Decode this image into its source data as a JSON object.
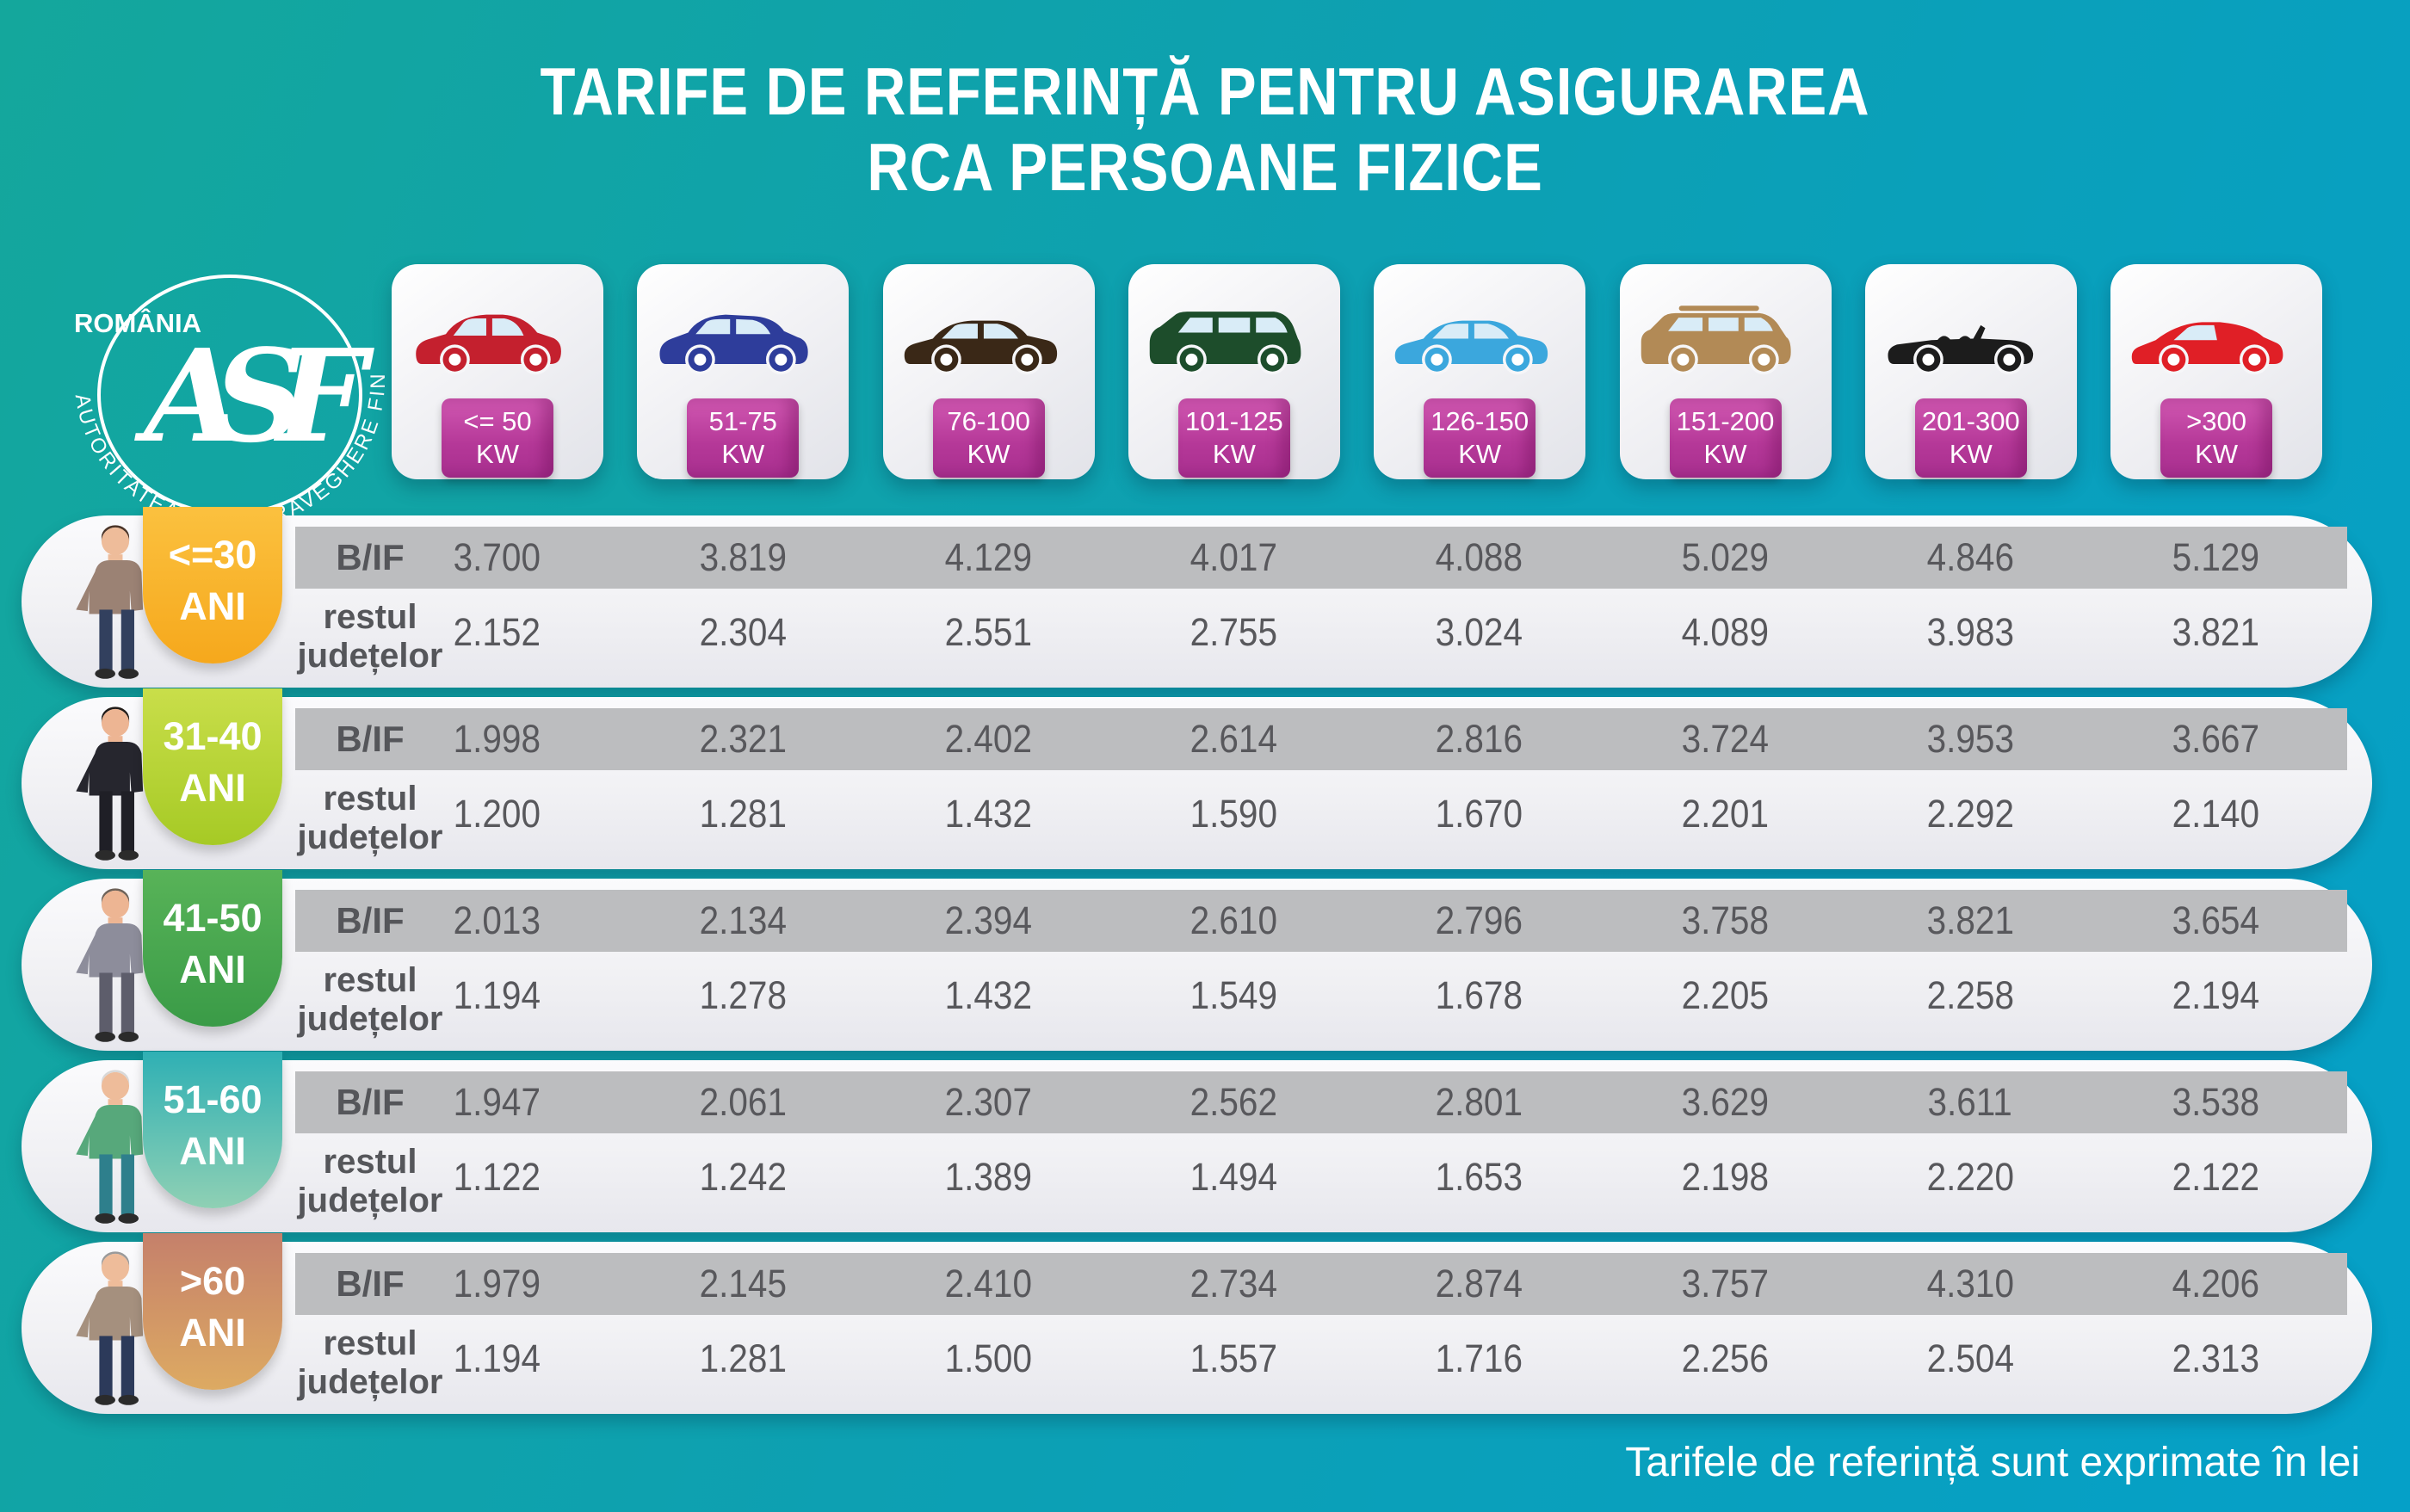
{
  "title": {
    "line1": "TARIFE DE REFERINȚĂ PENTRU ASIGURAREA",
    "line2": "RCA PERSOANE FIZICE"
  },
  "logo": {
    "country": "ROMÂNIA",
    "monogram": "ASF",
    "ring_text": "AUTORITATEA DE SUPRAVEGHERE FINANCIARĂ"
  },
  "footer_note": "Tarifele de referință sunt exprimate în lei",
  "labels": {
    "bif": "B/IF",
    "rest_line1": "restul",
    "rest_line2": "județelor",
    "age_unit": "ANI"
  },
  "colors": {
    "background_left": "#14a79c",
    "background_right": "#05a0c8",
    "kw_badge": "#b53898",
    "bif_band": "#bcbdbf",
    "value_text": "#58585c",
    "card": "#f1f1f4"
  },
  "power_categories": [
    {
      "range": "<= 50",
      "unit": "KW",
      "icon": "car-hatchback-icon",
      "color": "#c4202e"
    },
    {
      "range": "51-75",
      "unit": "KW",
      "icon": "car-crossover-icon",
      "color": "#2e3d9b"
    },
    {
      "range": "76-100",
      "unit": "KW",
      "icon": "car-sedan-icon",
      "color": "#3a2817"
    },
    {
      "range": "101-125",
      "unit": "KW",
      "icon": "car-minivan-icon",
      "color": "#1d4d2b"
    },
    {
      "range": "126-150",
      "unit": "KW",
      "icon": "car-sedan-blue-icon",
      "color": "#3ba7dd"
    },
    {
      "range": "151-200",
      "unit": "KW",
      "icon": "car-suv-icon",
      "color": "#b28a56"
    },
    {
      "range": "201-300",
      "unit": "KW",
      "icon": "car-convertible-icon",
      "color": "#1c1c1c"
    },
    {
      "range": ">300",
      "unit": "KW",
      "icon": "car-sports-icon",
      "color": "#e01f26"
    }
  ],
  "age_groups": [
    {
      "age": "<=30",
      "badge_top": "#fbc13f",
      "badge_bottom": "#f6a81c",
      "person": {
        "hair": "#4a3428",
        "skin": "#eebc9a",
        "top": "#9b8274",
        "shirt": "#f2efe9",
        "pants": "#32405e"
      },
      "bif": [
        "3.700",
        "3.819",
        "4.129",
        "4.017",
        "4.088",
        "5.029",
        "4.846",
        "5.129"
      ],
      "rest": [
        "2.152",
        "2.304",
        "2.551",
        "2.755",
        "3.024",
        "4.089",
        "3.983",
        "3.821"
      ]
    },
    {
      "age": "31-40",
      "badge_top": "#c9de4a",
      "badge_bottom": "#a6ca25",
      "person": {
        "hair": "#201b18",
        "skin": "#edb593",
        "top": "#26262e",
        "shirt": "#ffffff",
        "pants": "#1f1f26"
      },
      "bif": [
        "1.998",
        "2.321",
        "2.402",
        "2.614",
        "2.816",
        "3.724",
        "3.953",
        "3.667"
      ],
      "rest": [
        "1.200",
        "1.281",
        "1.432",
        "1.590",
        "1.670",
        "2.201",
        "2.292",
        "2.140"
      ]
    },
    {
      "age": "41-50",
      "badge_top": "#58b358",
      "badge_bottom": "#3a9b47",
      "person": {
        "hair": "#6e6258",
        "skin": "#edb593",
        "top": "#8d8d9b",
        "shirt": "#e8e8ee",
        "pants": "#5d5d6b"
      },
      "bif": [
        "2.013",
        "2.134",
        "2.394",
        "2.610",
        "2.796",
        "3.758",
        "3.821",
        "3.654"
      ],
      "rest": [
        "1.194",
        "1.278",
        "1.432",
        "1.549",
        "1.678",
        "2.205",
        "2.258",
        "2.194"
      ]
    },
    {
      "age": "51-60",
      "badge_top": "#2fb0b4",
      "badge_bottom": "#8fd0b4",
      "person": {
        "hair": "#d8d8d8",
        "skin": "#eebc9a",
        "top": "#57a87b",
        "shirt": "#ffffff",
        "pants": "#2e7f8c"
      },
      "bif": [
        "1.947",
        "2.061",
        "2.307",
        "2.562",
        "2.801",
        "3.629",
        "3.611",
        "3.538"
      ],
      "rest": [
        "1.122",
        "1.242",
        "1.389",
        "1.494",
        "1.653",
        "2.198",
        "2.220",
        "2.122"
      ]
    },
    {
      "age": ">60",
      "badge_top": "#c5806b",
      "badge_bottom": "#ddaa62",
      "person": {
        "hair": "#9a9a9a",
        "skin": "#eebc9a",
        "top": "#a5907e",
        "shirt": "#ece7df",
        "pants": "#2c3a5a"
      },
      "bif": [
        "1.979",
        "2.145",
        "2.410",
        "2.734",
        "2.874",
        "3.757",
        "4.310",
        "4.206"
      ],
      "rest": [
        "1.194",
        "1.281",
        "1.500",
        "1.557",
        "1.716",
        "2.256",
        "2.504",
        "2.313"
      ]
    }
  ],
  "chart_data": {
    "type": "table",
    "title": "TARIFE DE REFERINȚĂ PENTRU ASIGURAREA RCA PERSOANE FIZICE",
    "unit_note": "Tarifele de referință sunt exprimate în lei",
    "columns_kw": [
      "<= 50 KW",
      "51-75 KW",
      "76-100 KW",
      "101-125 KW",
      "126-150 KW",
      "151-200 KW",
      "201-300 KW",
      ">300 KW"
    ],
    "rows": [
      {
        "age_group": "<=30 ANI",
        "region": "B/IF",
        "values": [
          3700,
          3819,
          4129,
          4017,
          4088,
          5029,
          4846,
          5129
        ]
      },
      {
        "age_group": "<=30 ANI",
        "region": "restul județelor",
        "values": [
          2152,
          2304,
          2551,
          2755,
          3024,
          4089,
          3983,
          3821
        ]
      },
      {
        "age_group": "31-40 ANI",
        "region": "B/IF",
        "values": [
          1998,
          2321,
          2402,
          2614,
          2816,
          3724,
          3953,
          3667
        ]
      },
      {
        "age_group": "31-40 ANI",
        "region": "restul județelor",
        "values": [
          1200,
          1281,
          1432,
          1590,
          1670,
          2201,
          2292,
          2140
        ]
      },
      {
        "age_group": "41-50 ANI",
        "region": "B/IF",
        "values": [
          2013,
          2134,
          2394,
          2610,
          2796,
          3758,
          3821,
          3654
        ]
      },
      {
        "age_group": "41-50 ANI",
        "region": "restul județelor",
        "values": [
          1194,
          1278,
          1432,
          1549,
          1678,
          2205,
          2258,
          2194
        ]
      },
      {
        "age_group": "51-60 ANI",
        "region": "B/IF",
        "values": [
          1947,
          2061,
          2307,
          2562,
          2801,
          3629,
          3611,
          3538
        ]
      },
      {
        "age_group": "51-60 ANI",
        "region": "restul județelor",
        "values": [
          1122,
          1242,
          1389,
          1494,
          1653,
          2198,
          2220,
          2122
        ]
      },
      {
        "age_group": ">60 ANI",
        "region": "B/IF",
        "values": [
          1979,
          2145,
          2410,
          2734,
          2874,
          3757,
          4310,
          4206
        ]
      },
      {
        "age_group": ">60 ANI",
        "region": "restul județelor",
        "values": [
          1194,
          1281,
          1500,
          1557,
          1716,
          2256,
          2504,
          2313
        ]
      }
    ]
  }
}
